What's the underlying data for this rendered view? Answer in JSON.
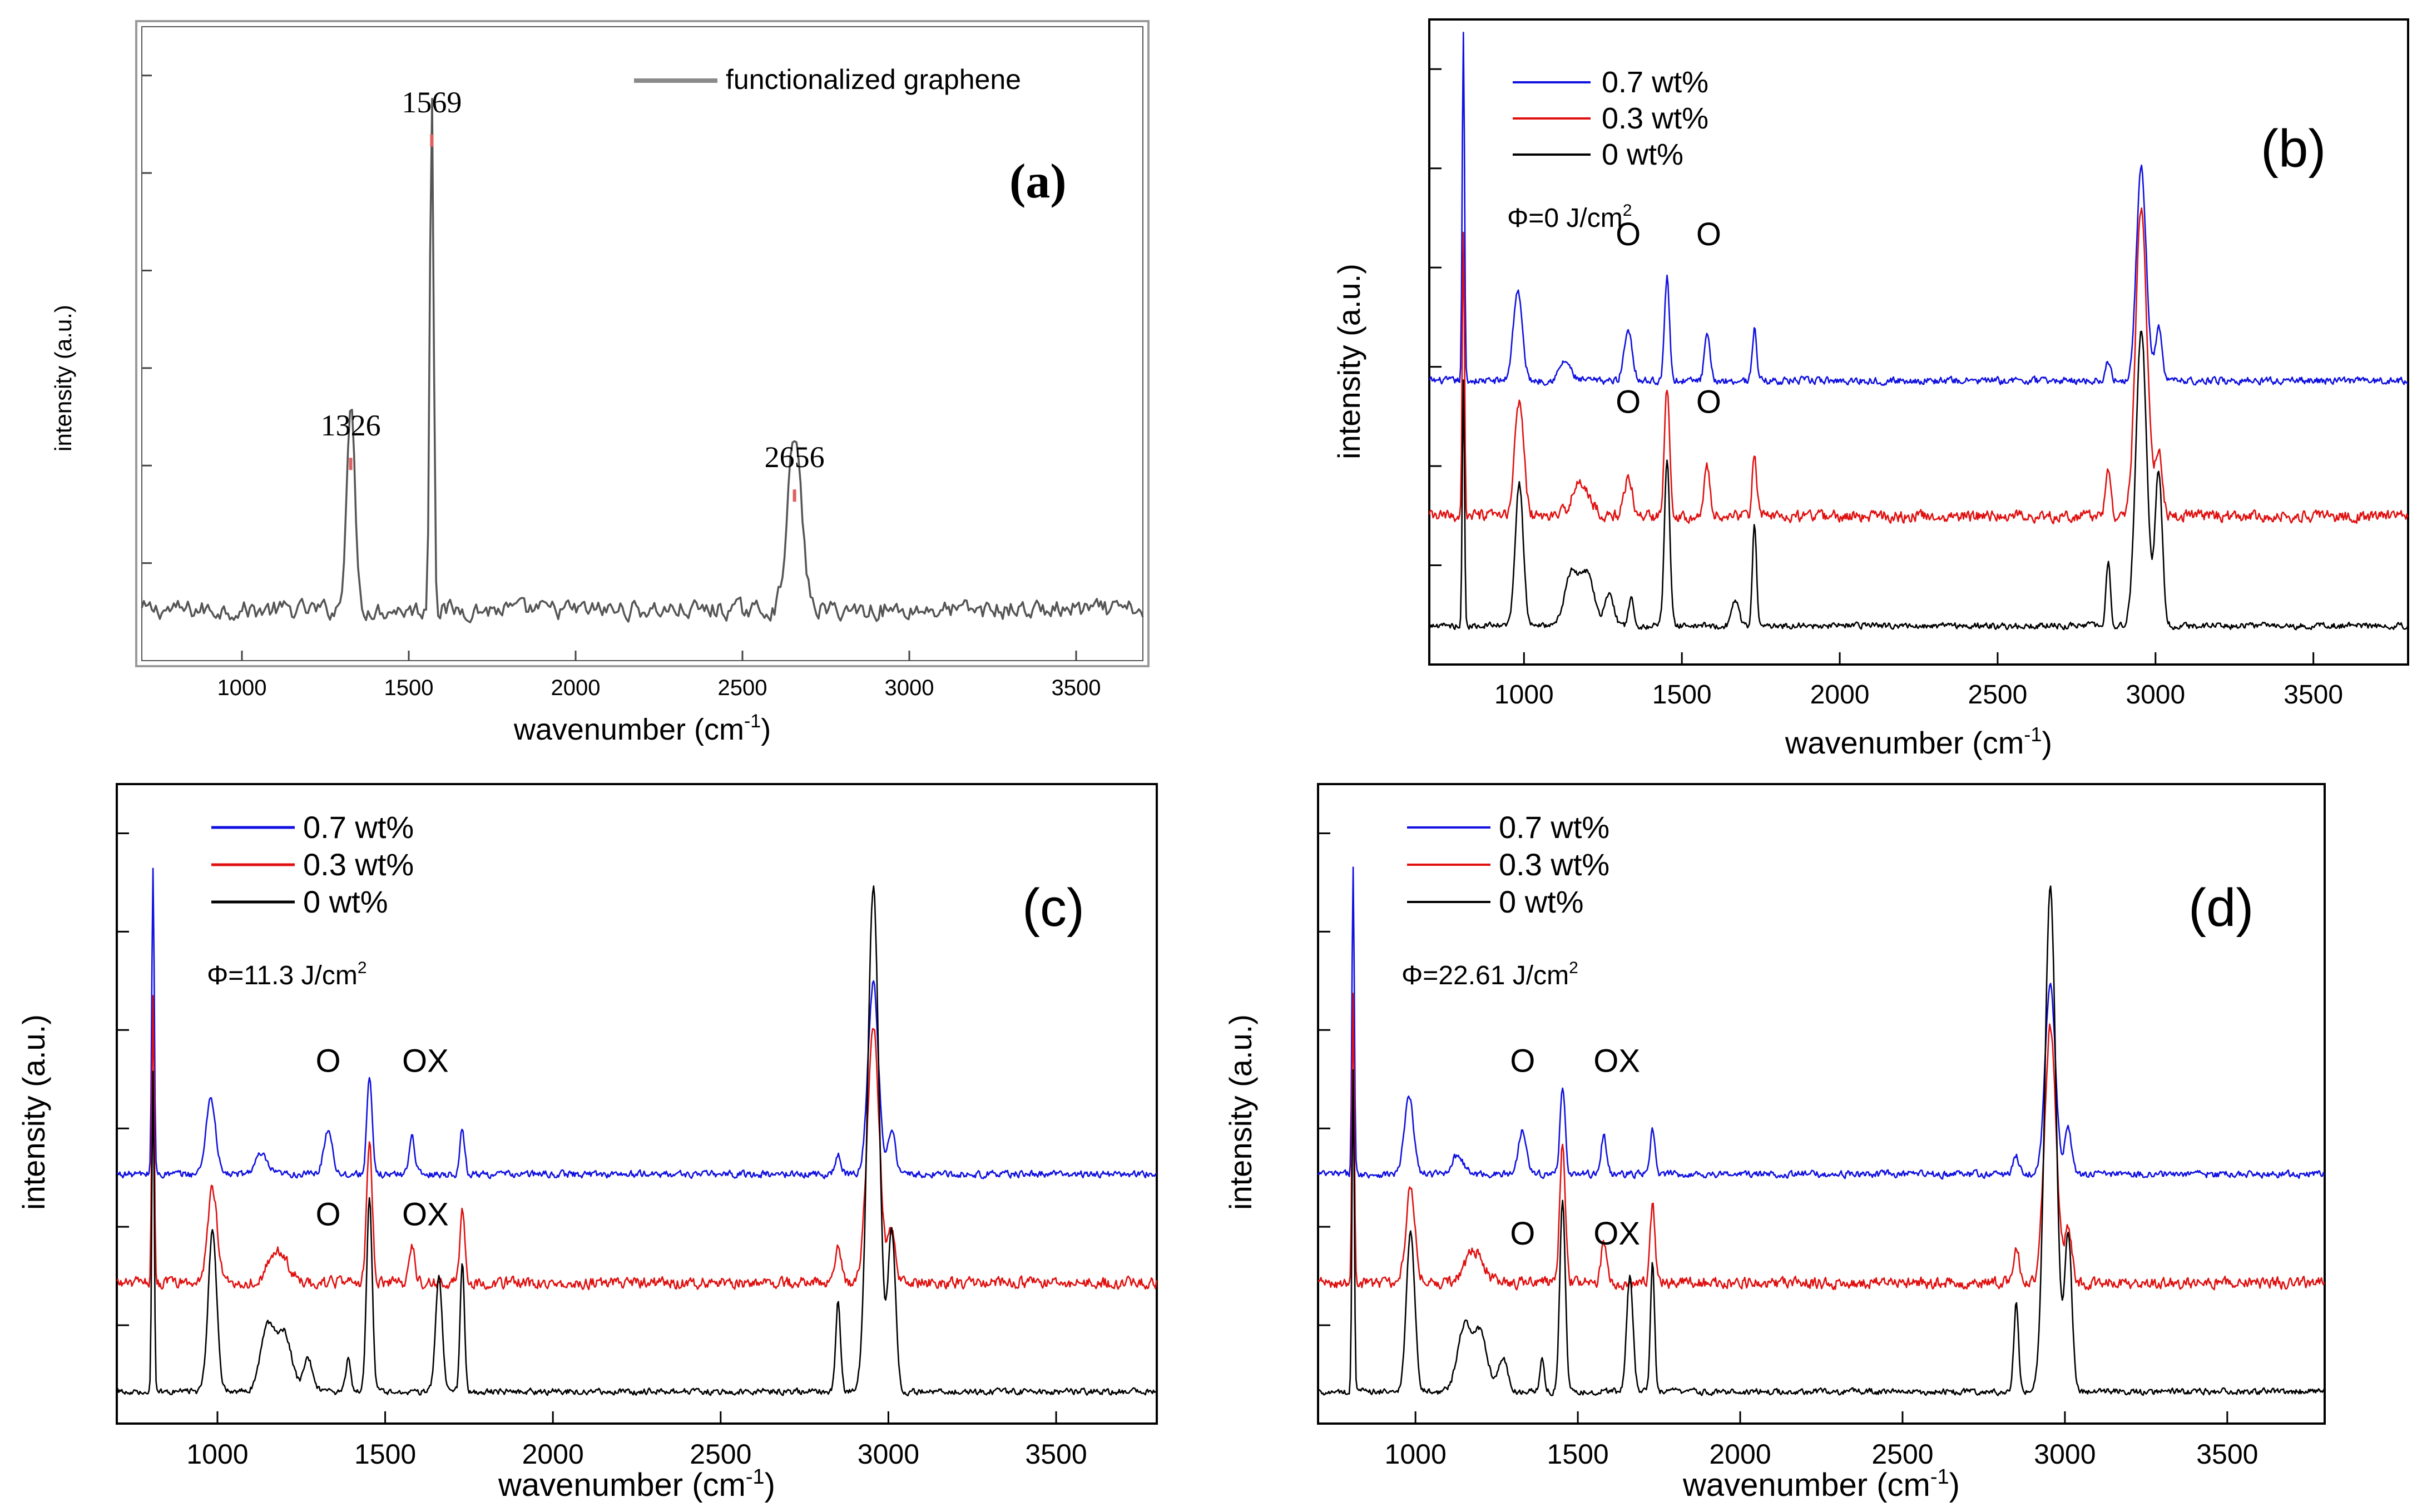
{
  "chart_data": [
    {
      "id": "a",
      "type": "line",
      "panel_label": "(a)",
      "xlabel": "wavenumber (cm",
      "xlabel_sup": "-1",
      "xlabel_close": ")",
      "ylabel": "intensity (a.u.)",
      "xlim": [
        700,
        3700
      ],
      "ylim": [
        0,
        100
      ],
      "xticks": [
        "1000",
        "1500",
        "2000",
        "2500",
        "3000",
        "3500"
      ],
      "xtick_values": [
        1000,
        1500,
        2000,
        2500,
        3000,
        3500
      ],
      "yticks_count": 6,
      "legend": [
        "functionalized graphene"
      ],
      "series": [
        {
          "name": "functionalized graphene",
          "color": "#555555",
          "baseline": 8,
          "noise": 2.2,
          "peaks": [
            [
              1326,
              32,
              18
            ],
            [
              1569,
              83,
              8
            ],
            [
              2656,
              27,
              30
            ]
          ]
        }
      ],
      "peak_labels": [
        {
          "text": "1326",
          "x": 1326,
          "y": 32
        },
        {
          "text": "1569",
          "x": 1569,
          "y": 83
        },
        {
          "text": "2656",
          "x": 2656,
          "y": 27
        }
      ],
      "peak_marker_color": "#e06060"
    },
    {
      "id": "b",
      "type": "line",
      "panel_label": "(b)",
      "fluence_prefix": "Φ=0 J/cm",
      "fluence_sup": "2",
      "xlabel": "wavenumber (cm",
      "xlabel_sup": "-1",
      "xlabel_close": ")",
      "ylabel": "intensity (a.u.)",
      "xlim": [
        700,
        3800
      ],
      "ylim": [
        0,
        100
      ],
      "xticks": [
        "1000",
        "1500",
        "2000",
        "2500",
        "3000",
        "3500"
      ],
      "xtick_values": [
        1000,
        1500,
        2000,
        2500,
        3000,
        3500
      ],
      "yticks_count": 6,
      "legend": [
        "0.7 wt%",
        "0.3 wt%",
        "0 wt%"
      ],
      "series": [
        {
          "name": "0.7 wt%",
          "color": "#1010e0",
          "baseline": 44,
          "noise": 0.8,
          "peaks": [
            [
              808,
              54,
              5
            ],
            [
              980,
              14,
              20
            ],
            [
              1130,
              3,
              25
            ],
            [
              1330,
              8,
              18
            ],
            [
              1453,
              16,
              11
            ],
            [
              1580,
              7,
              12
            ],
            [
              1730,
              8,
              10
            ],
            [
              2850,
              3,
              12
            ],
            [
              2955,
              33,
              22
            ],
            [
              3010,
              8,
              15
            ]
          ]
        },
        {
          "name": "0.3 wt%",
          "color": "#e01010",
          "baseline": 23,
          "noise": 1.3,
          "peaks": [
            [
              808,
              44,
              5
            ],
            [
              985,
              18,
              20
            ],
            [
              1180,
              5,
              40
            ],
            [
              1330,
              6,
              18
            ],
            [
              1453,
              20,
              12
            ],
            [
              1580,
              8,
              12
            ],
            [
              1730,
              10,
              10
            ],
            [
              2850,
              7,
              12
            ],
            [
              2955,
              48,
              25
            ],
            [
              3010,
              10,
              16
            ]
          ]
        },
        {
          "name": "0 wt%",
          "color": "#000000",
          "baseline": 6,
          "noise": 0.7,
          "peaks": [
            [
              808,
              38,
              5
            ],
            [
              985,
              22,
              18
            ],
            [
              1150,
              8,
              30
            ],
            [
              1200,
              8,
              30
            ],
            [
              1270,
              5,
              20
            ],
            [
              1340,
              4,
              12
            ],
            [
              1453,
              26,
              12
            ],
            [
              1670,
              4,
              15
            ],
            [
              1730,
              16,
              9
            ],
            [
              2850,
              10,
              10
            ],
            [
              2955,
              46,
              24
            ],
            [
              3010,
              24,
              16
            ]
          ]
        }
      ],
      "annotations": [
        {
          "text": "O",
          "x": 1330,
          "y": 65
        },
        {
          "text": "O",
          "x": 1585,
          "y": 65
        },
        {
          "text": "O",
          "x": 1330,
          "y": 39
        },
        {
          "text": "O",
          "x": 1585,
          "y": 39
        }
      ]
    },
    {
      "id": "c",
      "type": "line",
      "panel_label": "(c)",
      "fluence_prefix": "Φ=11.3 J/cm",
      "fluence_sup": "2",
      "xlabel": "wavenumber (cm",
      "xlabel_sup": "-1",
      "xlabel_close": ")",
      "ylabel": "intensity (a.u.)",
      "xlim": [
        700,
        3800
      ],
      "ylim": [
        0,
        100
      ],
      "xticks": [
        "1000",
        "1500",
        "2000",
        "2500",
        "3000",
        "3500"
      ],
      "xtick_values": [
        1000,
        1500,
        2000,
        2500,
        3000,
        3500
      ],
      "yticks_count": 6,
      "legend": [
        "0.7 wt%",
        "0.3 wt%",
        "0 wt%"
      ],
      "series": [
        {
          "name": "0.7 wt%",
          "color": "#1010e0",
          "baseline": 39,
          "noise": 0.8,
          "peaks": [
            [
              808,
              48,
              5
            ],
            [
              980,
              12,
              20
            ],
            [
              1130,
              3,
              25
            ],
            [
              1330,
              7,
              18
            ],
            [
              1453,
              15,
              11
            ],
            [
              1580,
              6,
              12
            ],
            [
              1730,
              7,
              10
            ],
            [
              2850,
              3,
              12
            ],
            [
              2955,
              30,
              22
            ],
            [
              3010,
              7,
              15
            ]
          ]
        },
        {
          "name": "0.3 wt%",
          "color": "#e01010",
          "baseline": 22,
          "noise": 1.3,
          "peaks": [
            [
              808,
              45,
              5
            ],
            [
              985,
              15,
              20
            ],
            [
              1180,
              5,
              40
            ],
            [
              1453,
              22,
              12
            ],
            [
              1580,
              6,
              12
            ],
            [
              1730,
              12,
              10
            ],
            [
              2850,
              6,
              12
            ],
            [
              2955,
              40,
              25
            ],
            [
              3010,
              8,
              16
            ]
          ]
        },
        {
          "name": "0 wt%",
          "color": "#000000",
          "baseline": 5,
          "noise": 0.7,
          "peaks": [
            [
              808,
              50,
              5
            ],
            [
              985,
              25,
              18
            ],
            [
              1150,
              10,
              30
            ],
            [
              1200,
              9,
              30
            ],
            [
              1270,
              5,
              20
            ],
            [
              1390,
              5,
              10
            ],
            [
              1453,
              30,
              12
            ],
            [
              1660,
              18,
              14
            ],
            [
              1730,
              20,
              9
            ],
            [
              2850,
              14,
              10
            ],
            [
              2955,
              79,
              24
            ],
            [
              3010,
              25,
              16
            ]
          ]
        }
      ],
      "annotations": [
        {
          "text": "O",
          "x": 1330,
          "y": 55
        },
        {
          "text": "OX",
          "x": 1620,
          "y": 55
        },
        {
          "text": "O",
          "x": 1330,
          "y": 31
        },
        {
          "text": "OX",
          "x": 1620,
          "y": 31
        }
      ]
    },
    {
      "id": "d",
      "type": "line",
      "panel_label": "(d)",
      "fluence_prefix": "Φ=22.61 J/cm",
      "fluence_sup": "2",
      "xlabel": "wavenumber (cm",
      "xlabel_sup": "-1",
      "xlabel_close": ")",
      "ylabel": "intensity (a.u.)",
      "xlim": [
        700,
        3800
      ],
      "ylim": [
        0,
        100
      ],
      "xticks": [
        "1000",
        "1500",
        "2000",
        "2500",
        "3000",
        "3500"
      ],
      "xtick_values": [
        1000,
        1500,
        2000,
        2500,
        3000,
        3500
      ],
      "yticks_count": 6,
      "legend": [
        "0.7 wt%",
        "0.3 wt%",
        "0 wt%"
      ],
      "series": [
        {
          "name": "0.7 wt%",
          "color": "#1010e0",
          "baseline": 39,
          "noise": 0.8,
          "peaks": [
            [
              808,
              48,
              5
            ],
            [
              980,
              12,
              20
            ],
            [
              1130,
              3,
              25
            ],
            [
              1330,
              7,
              18
            ],
            [
              1453,
              14,
              11
            ],
            [
              1580,
              6,
              12
            ],
            [
              1730,
              7,
              10
            ],
            [
              2850,
              3,
              12
            ],
            [
              2955,
              30,
              22
            ],
            [
              3010,
              7,
              15
            ]
          ]
        },
        {
          "name": "0.3 wt%",
          "color": "#e01010",
          "baseline": 22,
          "noise": 1.3,
          "peaks": [
            [
              808,
              45,
              5
            ],
            [
              985,
              15,
              20
            ],
            [
              1180,
              5,
              40
            ],
            [
              1453,
              22,
              12
            ],
            [
              1580,
              6,
              12
            ],
            [
              1730,
              12,
              10
            ],
            [
              2850,
              6,
              12
            ],
            [
              2955,
              40,
              25
            ],
            [
              3010,
              8,
              16
            ]
          ]
        },
        {
          "name": "0 wt%",
          "color": "#000000",
          "baseline": 5,
          "noise": 0.7,
          "peaks": [
            [
              808,
              50,
              5
            ],
            [
              985,
              25,
              18
            ],
            [
              1150,
              10,
              30
            ],
            [
              1200,
              9,
              30
            ],
            [
              1270,
              5,
              20
            ],
            [
              1390,
              5,
              10
            ],
            [
              1453,
              30,
              12
            ],
            [
              1660,
              18,
              14
            ],
            [
              1730,
              20,
              9
            ],
            [
              2850,
              14,
              10
            ],
            [
              2955,
              79,
              24
            ],
            [
              3010,
              25,
              16
            ]
          ]
        }
      ],
      "annotations": [
        {
          "text": "O",
          "x": 1330,
          "y": 55
        },
        {
          "text": "OX",
          "x": 1620,
          "y": 55
        },
        {
          "text": "O",
          "x": 1330,
          "y": 28
        },
        {
          "text": "OX",
          "x": 1620,
          "y": 28
        }
      ]
    }
  ]
}
